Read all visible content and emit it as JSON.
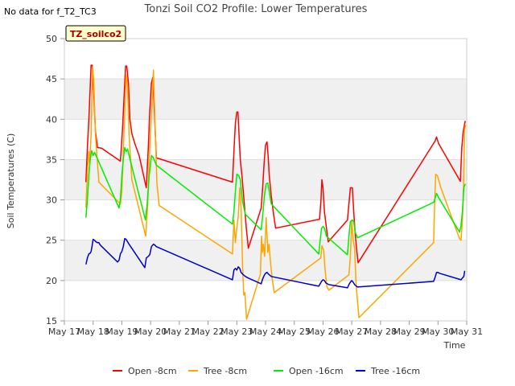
{
  "no_data_text": "No data for f_T2_TC3",
  "badge_label": "TZ_soilco2",
  "chart_data": {
    "type": "line",
    "title": "Tonzi Soil CO2 Profile: Lower Temperatures",
    "xlabel": "Time",
    "ylabel": "Soil Temperatures (C)",
    "xlim": [
      17,
      31
    ],
    "ylim": [
      15,
      50
    ],
    "x_tick_values": [
      17,
      18,
      19,
      20,
      21,
      22,
      23,
      24,
      25,
      26,
      27,
      28,
      29,
      30,
      31
    ],
    "x_tick_labels": [
      "May 17",
      "May 18",
      "May 19",
      "May 20",
      "May 21",
      "May 22",
      "May 23",
      "May 24",
      "May 25",
      "May 26",
      "May 27",
      "May 28",
      "May 29",
      "May 30",
      "May 31"
    ],
    "y_tick_values": [
      15,
      20,
      25,
      30,
      35,
      40,
      45,
      50
    ],
    "y_tick_labels": [
      "15",
      "20",
      "25",
      "30",
      "35",
      "40",
      "45",
      "50"
    ],
    "shaded_bands": [
      [
        20,
        25
      ],
      [
        30,
        35
      ],
      [
        40,
        45
      ]
    ],
    "band_color": "#f0f0f0",
    "series": [
      {
        "name": "Open -8cm",
        "color": "#ff0000",
        "points": [
          [
            17.75,
            32.2
          ],
          [
            17.8,
            36.5
          ],
          [
            17.85,
            40
          ],
          [
            17.9,
            44
          ],
          [
            17.93,
            46.7
          ],
          [
            17.97,
            46.7
          ],
          [
            18.02,
            43.5
          ],
          [
            18.08,
            38.5
          ],
          [
            18.15,
            36.5
          ],
          [
            18.3,
            36.4
          ],
          [
            18.95,
            34.8
          ],
          [
            19.02,
            38.5
          ],
          [
            19.08,
            43
          ],
          [
            19.13,
            46.6
          ],
          [
            19.17,
            46.6
          ],
          [
            19.23,
            44.5
          ],
          [
            19.28,
            40
          ],
          [
            19.35,
            38.2
          ],
          [
            19.45,
            37
          ],
          [
            19.6,
            35.5
          ],
          [
            19.85,
            31.5
          ],
          [
            19.92,
            36.5
          ],
          [
            19.97,
            41
          ],
          [
            20.03,
            44.5
          ],
          [
            20.08,
            45.2
          ],
          [
            20.12,
            42
          ],
          [
            20.16,
            38.5
          ],
          [
            20.2,
            35.2
          ],
          [
            20.3,
            35.1
          ],
          [
            22.85,
            32.2
          ],
          [
            22.9,
            36
          ],
          [
            22.95,
            39.5
          ],
          [
            23.0,
            40.9
          ],
          [
            23.04,
            40.9
          ],
          [
            23.08,
            38
          ],
          [
            23.12,
            35
          ],
          [
            23.18,
            33
          ],
          [
            23.25,
            30
          ],
          [
            23.33,
            26.5
          ],
          [
            23.4,
            24
          ],
          [
            23.85,
            29
          ],
          [
            23.9,
            31.5
          ],
          [
            23.95,
            34.5
          ],
          [
            24.0,
            36.8
          ],
          [
            24.05,
            37.2
          ],
          [
            24.09,
            35.5
          ],
          [
            24.13,
            33
          ],
          [
            24.2,
            30.5
          ],
          [
            24.27,
            28.5
          ],
          [
            24.35,
            26.5
          ],
          [
            25.88,
            27.6
          ],
          [
            25.93,
            30
          ],
          [
            25.96,
            32.5
          ],
          [
            26.0,
            31.5
          ],
          [
            26.05,
            28.5
          ],
          [
            26.12,
            26.5
          ],
          [
            26.18,
            24.8
          ],
          [
            26.85,
            27.5
          ],
          [
            26.9,
            29.5
          ],
          [
            26.95,
            31.5
          ],
          [
            27.02,
            31.5
          ],
          [
            27.07,
            28.5
          ],
          [
            27.12,
            25.8
          ],
          [
            27.18,
            23.5
          ],
          [
            27.22,
            22.2
          ],
          [
            29.9,
            37.3
          ],
          [
            29.95,
            37.8
          ],
          [
            30.02,
            37.0
          ],
          [
            30.78,
            32.3
          ],
          [
            30.83,
            36.5
          ],
          [
            30.88,
            38.5
          ],
          [
            30.95,
            39.8
          ]
        ]
      },
      {
        "name": "Tree -8cm",
        "color": "#ffa500",
        "points": [
          [
            17.75,
            29
          ],
          [
            17.8,
            33.5
          ],
          [
            17.85,
            36
          ],
          [
            17.88,
            34.5
          ],
          [
            17.93,
            38
          ],
          [
            17.98,
            46.5
          ],
          [
            18.02,
            45
          ],
          [
            18.08,
            38
          ],
          [
            18.2,
            32.2
          ],
          [
            18.95,
            29.5
          ],
          [
            19.0,
            31
          ],
          [
            19.05,
            36
          ],
          [
            19.1,
            41
          ],
          [
            19.15,
            45.5
          ],
          [
            19.2,
            44
          ],
          [
            19.25,
            38
          ],
          [
            19.35,
            32.5
          ],
          [
            19.83,
            25.5
          ],
          [
            19.9,
            29.5
          ],
          [
            19.95,
            35
          ],
          [
            20.05,
            42
          ],
          [
            20.1,
            46.1
          ],
          [
            20.15,
            40
          ],
          [
            20.22,
            32
          ],
          [
            20.3,
            29.3
          ],
          [
            22.85,
            23.3
          ],
          [
            22.9,
            27.5
          ],
          [
            22.95,
            24.7
          ],
          [
            23.0,
            26.5
          ],
          [
            23.05,
            28
          ],
          [
            23.1,
            31.5
          ],
          [
            23.15,
            29
          ],
          [
            23.2,
            22
          ],
          [
            23.24,
            18.2
          ],
          [
            23.28,
            18.5
          ],
          [
            23.34,
            15.2
          ],
          [
            23.82,
            20.8
          ],
          [
            23.86,
            25.5
          ],
          [
            23.89,
            23.5
          ],
          [
            23.92,
            24.5
          ],
          [
            23.97,
            23
          ],
          [
            24.02,
            27.8
          ],
          [
            24.08,
            23.5
          ],
          [
            24.12,
            24.5
          ],
          [
            24.18,
            22
          ],
          [
            24.23,
            20.3
          ],
          [
            24.3,
            18.5
          ],
          [
            25.92,
            22.8
          ],
          [
            25.96,
            24.3
          ],
          [
            26.02,
            23.8
          ],
          [
            26.08,
            21
          ],
          [
            26.14,
            19.2
          ],
          [
            26.2,
            18.8
          ],
          [
            26.9,
            20.7
          ],
          [
            26.95,
            23
          ],
          [
            27.0,
            27.5
          ],
          [
            27.05,
            25
          ],
          [
            27.1,
            24
          ],
          [
            27.15,
            19.5
          ],
          [
            27.25,
            15.4
          ],
          [
            29.85,
            24.7
          ],
          [
            29.88,
            29
          ],
          [
            29.92,
            33.2
          ],
          [
            29.98,
            33.0
          ],
          [
            30.1,
            31.5
          ],
          [
            30.75,
            25.2
          ],
          [
            30.8,
            25.0
          ],
          [
            30.85,
            27.5
          ],
          [
            30.88,
            30
          ],
          [
            30.93,
            38.8
          ],
          [
            30.96,
            39.3
          ]
        ]
      },
      {
        "name": "Open -16cm",
        "color": "#00ee00",
        "points": [
          [
            17.75,
            27.8
          ],
          [
            17.8,
            30
          ],
          [
            17.85,
            33
          ],
          [
            17.9,
            35
          ],
          [
            17.95,
            36.1
          ],
          [
            18.0,
            35.5
          ],
          [
            18.05,
            35.9
          ],
          [
            18.1,
            35.5
          ],
          [
            18.9,
            29
          ],
          [
            18.95,
            30
          ],
          [
            19.0,
            33
          ],
          [
            19.05,
            35
          ],
          [
            19.1,
            36.5
          ],
          [
            19.15,
            36
          ],
          [
            19.2,
            36.3
          ],
          [
            19.25,
            35.5
          ],
          [
            19.82,
            27.5
          ],
          [
            19.88,
            29.5
          ],
          [
            19.95,
            33
          ],
          [
            20.03,
            35.5
          ],
          [
            20.1,
            35.2
          ],
          [
            20.2,
            34.3
          ],
          [
            22.85,
            27
          ],
          [
            22.9,
            28.5
          ],
          [
            22.95,
            31
          ],
          [
            23.0,
            33.2
          ],
          [
            23.07,
            33.0
          ],
          [
            23.12,
            32.5
          ],
          [
            23.2,
            29.8
          ],
          [
            23.3,
            28.2
          ],
          [
            23.85,
            26.3
          ],
          [
            23.9,
            28
          ],
          [
            23.96,
            30.5
          ],
          [
            24.02,
            32.0
          ],
          [
            24.08,
            32.1
          ],
          [
            24.13,
            31
          ],
          [
            24.2,
            29.5
          ],
          [
            25.85,
            23.3
          ],
          [
            25.9,
            25
          ],
          [
            25.95,
            26.5
          ],
          [
            26.0,
            26.7
          ],
          [
            26.05,
            26.5
          ],
          [
            26.12,
            25.5
          ],
          [
            26.85,
            23.2
          ],
          [
            26.9,
            25.5
          ],
          [
            26.95,
            27.3
          ],
          [
            27.02,
            27.5
          ],
          [
            27.07,
            27.3
          ],
          [
            27.12,
            26
          ],
          [
            27.2,
            25.3
          ],
          [
            29.85,
            29.7
          ],
          [
            29.9,
            30.2
          ],
          [
            29.95,
            30.8
          ],
          [
            30.02,
            30.3
          ],
          [
            30.75,
            26
          ],
          [
            30.8,
            26.8
          ],
          [
            30.85,
            28.5
          ],
          [
            30.9,
            31.5
          ],
          [
            30.95,
            32
          ]
        ]
      },
      {
        "name": "Tree -16cm",
        "color": "#0000cc",
        "points": [
          [
            17.75,
            22
          ],
          [
            17.8,
            22.8
          ],
          [
            17.85,
            23.3
          ],
          [
            17.9,
            23.4
          ],
          [
            17.93,
            23.6
          ],
          [
            17.96,
            24.2
          ],
          [
            18.0,
            25.1
          ],
          [
            18.05,
            25.0
          ],
          [
            18.1,
            24.8
          ],
          [
            18.15,
            24.7
          ],
          [
            18.2,
            24.7
          ],
          [
            18.25,
            24.4
          ],
          [
            18.85,
            22.3
          ],
          [
            18.9,
            22.5
          ],
          [
            18.95,
            23.3
          ],
          [
            19.0,
            23.6
          ],
          [
            19.05,
            24.2
          ],
          [
            19.1,
            25.2
          ],
          [
            19.15,
            25.1
          ],
          [
            19.2,
            24.8
          ],
          [
            19.25,
            24.5
          ],
          [
            19.8,
            21.6
          ],
          [
            19.85,
            22.8
          ],
          [
            19.92,
            23.0
          ],
          [
            19.97,
            23.2
          ],
          [
            20.03,
            24.2
          ],
          [
            20.1,
            24.5
          ],
          [
            20.15,
            24.4
          ],
          [
            20.2,
            24.2
          ],
          [
            22.85,
            20.1
          ],
          [
            22.9,
            21.3
          ],
          [
            22.95,
            21.5
          ],
          [
            23.0,
            21.3
          ],
          [
            23.05,
            21.7
          ],
          [
            23.1,
            21.5
          ],
          [
            23.15,
            21.0
          ],
          [
            23.2,
            20.8
          ],
          [
            23.3,
            20.5
          ],
          [
            23.4,
            20.3
          ],
          [
            23.85,
            19.6
          ],
          [
            23.9,
            20.2
          ],
          [
            23.95,
            20.6
          ],
          [
            24.0,
            20.9
          ],
          [
            24.05,
            21.0
          ],
          [
            24.1,
            20.8
          ],
          [
            24.2,
            20.5
          ],
          [
            25.85,
            19.3
          ],
          [
            25.9,
            19.6
          ],
          [
            25.95,
            19.9
          ],
          [
            26.0,
            20.1
          ],
          [
            26.05,
            20.0
          ],
          [
            26.1,
            19.7
          ],
          [
            26.2,
            19.5
          ],
          [
            26.85,
            19.1
          ],
          [
            26.9,
            19.5
          ],
          [
            26.95,
            19.8
          ],
          [
            27.0,
            20.0
          ],
          [
            27.05,
            19.8
          ],
          [
            27.1,
            19.5
          ],
          [
            27.2,
            19.2
          ],
          [
            29.85,
            19.9
          ],
          [
            29.9,
            20.4
          ],
          [
            29.95,
            21.0
          ],
          [
            30.0,
            21.0
          ],
          [
            30.05,
            20.9
          ],
          [
            30.8,
            20.1
          ],
          [
            30.85,
            20.3
          ],
          [
            30.9,
            20.5
          ],
          [
            30.93,
            21.2
          ]
        ]
      }
    ]
  }
}
